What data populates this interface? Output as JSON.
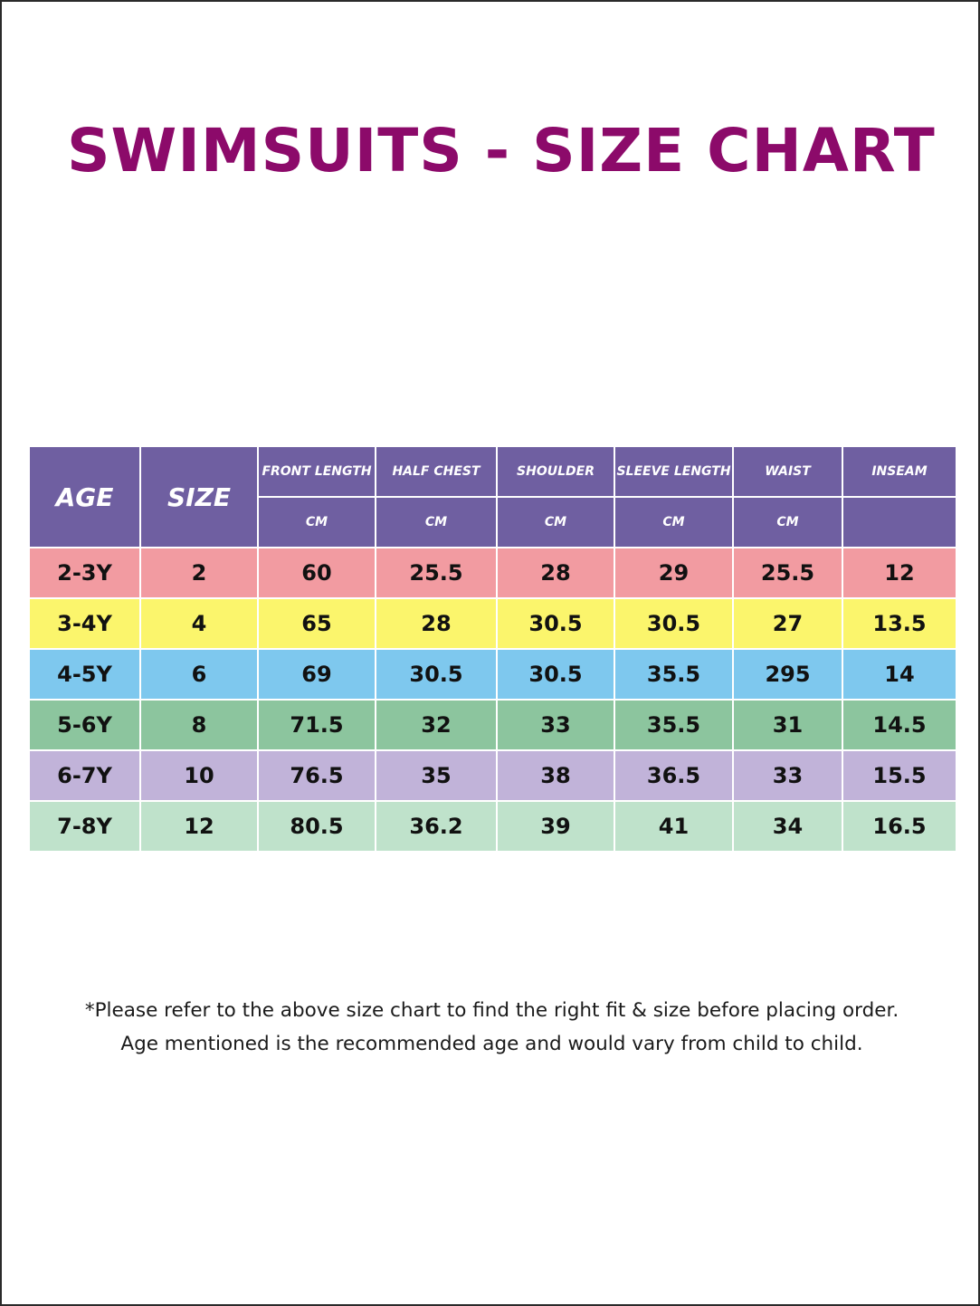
{
  "title": "SWIMSUITS - SIZE CHART",
  "colors": {
    "title": "#8c0a6a",
    "header": "#6f5fa1",
    "row_2_3y": "#f29ba1",
    "row_3_4y": "#fbf56c",
    "row_4_5y": "#7ec8ee",
    "row_5_6y": "#8cc59e",
    "row_6_7y": "#c1b3d9",
    "row_7_8y": "#bfe2cb"
  },
  "table": {
    "headers": {
      "age": "AGE",
      "size": "SIZE",
      "front_length": "FRONT LENGTH",
      "half_chest": "HALF CHEST",
      "shoulder": "SHOULDER",
      "sleeve_length": "SLEEVE LENGTH",
      "waist": "WAIST",
      "inseam": "INSEAM"
    },
    "units": {
      "front_length": "CM",
      "half_chest": "CM",
      "shoulder": "CM",
      "sleeve_length": "CM",
      "waist": "CM",
      "inseam": ""
    },
    "rows": [
      {
        "age": "2-3Y",
        "size": "2",
        "front_length": "60",
        "half_chest": "25.5",
        "shoulder": "28",
        "sleeve_length": "29",
        "waist": "25.5",
        "inseam": "12"
      },
      {
        "age": "3-4Y",
        "size": "4",
        "front_length": "65",
        "half_chest": "28",
        "shoulder": "30.5",
        "sleeve_length": "30.5",
        "waist": "27",
        "inseam": "13.5"
      },
      {
        "age": "4-5Y",
        "size": "6",
        "front_length": "69",
        "half_chest": "30.5",
        "shoulder": "30.5",
        "sleeve_length": "35.5",
        "waist": "295",
        "inseam": "14"
      },
      {
        "age": "5-6Y",
        "size": "8",
        "front_length": "71.5",
        "half_chest": "32",
        "shoulder": "33",
        "sleeve_length": "35.5",
        "waist": "31",
        "inseam": "14.5"
      },
      {
        "age": "6-7Y",
        "size": "10",
        "front_length": "76.5",
        "half_chest": "35",
        "shoulder": "38",
        "sleeve_length": "36.5",
        "waist": "33",
        "inseam": "15.5"
      },
      {
        "age": "7-8Y",
        "size": "12",
        "front_length": "80.5",
        "half_chest": "36.2",
        "shoulder": "39",
        "sleeve_length": "41",
        "waist": "34",
        "inseam": "16.5"
      }
    ]
  },
  "note": {
    "line1": "*Please refer to the above size chart to find the right fit & size before placing order.",
    "line2": "Age mentioned is the recommended age and would vary from child to child."
  }
}
